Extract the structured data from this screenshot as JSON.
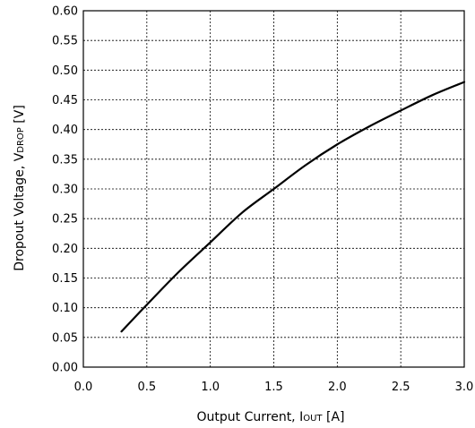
{
  "chart_data": {
    "type": "line",
    "title": "",
    "xlabel": {
      "main": "Output Current, I",
      "sub": "OUT",
      "unit": " [A]"
    },
    "ylabel": {
      "main": "Dropout Voltage, V",
      "sub": "DROP",
      "unit": " [V]"
    },
    "xlim": [
      0.0,
      3.0
    ],
    "ylim": [
      0.0,
      0.6
    ],
    "x_ticks": [
      "0.0",
      "0.5",
      "1.0",
      "1.5",
      "2.0",
      "2.5",
      "3.0"
    ],
    "y_ticks": [
      "0.00",
      "0.05",
      "0.10",
      "0.15",
      "0.20",
      "0.25",
      "0.30",
      "0.35",
      "0.40",
      "0.45",
      "0.50",
      "0.55",
      "0.60"
    ],
    "grid": true,
    "series": [
      {
        "color": "#000000",
        "x": [
          0.3,
          0.5,
          0.75,
          1.0,
          1.25,
          1.5,
          1.75,
          2.0,
          2.25,
          2.5,
          2.75,
          3.0
        ],
        "y": [
          0.06,
          0.105,
          0.16,
          0.21,
          0.26,
          0.3,
          0.34,
          0.375,
          0.405,
          0.432,
          0.458,
          0.48
        ]
      }
    ]
  }
}
